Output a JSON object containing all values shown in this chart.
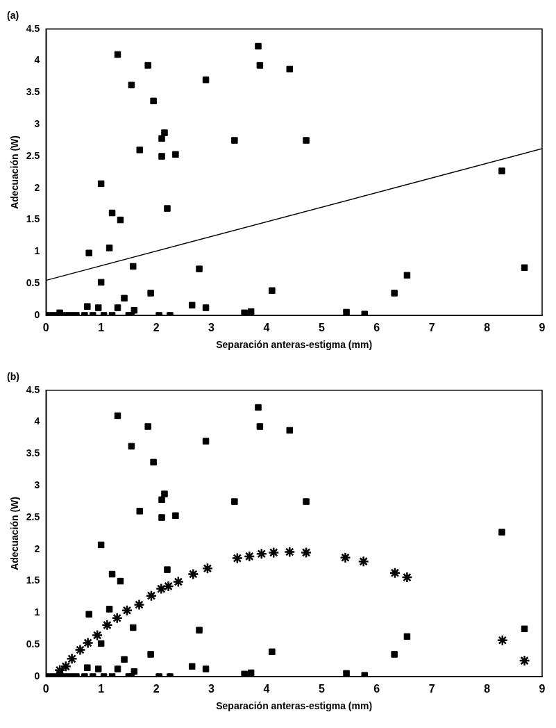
{
  "chart_data": [
    {
      "type": "scatter",
      "title": "(a)",
      "xlabel": "Separación anteras-estigma (mm)",
      "ylabel": "Adecuación (W)",
      "xlim": [
        0,
        9
      ],
      "ylim": [
        0,
        4.5
      ],
      "xticks": [
        0,
        1,
        2,
        3,
        4,
        5,
        6,
        7,
        8,
        9
      ],
      "yticks": [
        0,
        0.5,
        1,
        1.5,
        2,
        2.5,
        3,
        3.5,
        4,
        4.5
      ],
      "grid": false,
      "legend": false,
      "series": [
        {
          "marker": "square",
          "color": "#000000",
          "x": [
            1.3,
            1.55,
            1.85,
            1.95,
            2.15,
            2.1,
            2.1,
            2.35,
            1.7,
            2.9,
            3.85,
            3.88,
            4.42,
            3.42,
            4.72,
            1.0,
            1.2,
            1.35,
            2.2,
            0.78,
            1.15,
            1.58,
            1.0,
            2.78,
            1.9,
            1.42,
            4.1,
            2.65,
            2.9,
            0.75,
            0.95,
            1.3,
            1.6,
            3.6,
            3.72,
            5.45,
            5.78,
            6.32,
            6.55,
            8.27,
            8.68,
            2.05,
            2.25,
            0.25,
            0.05,
            0.15,
            0.35,
            0.45,
            0.55,
            0.7,
            0.85,
            1.05,
            1.2,
            1.5,
            1.55
          ],
          "values": [
            4.1,
            3.62,
            3.93,
            3.37,
            2.87,
            2.78,
            2.5,
            2.53,
            2.6,
            3.7,
            4.23,
            3.93,
            3.87,
            2.75,
            2.75,
            2.07,
            1.61,
            1.5,
            1.68,
            0.98,
            1.06,
            0.77,
            0.52,
            0.73,
            0.35,
            0.27,
            0.39,
            0.16,
            0.12,
            0.14,
            0.12,
            0.12,
            0.08,
            0.04,
            0.06,
            0.05,
            0.02,
            0.35,
            0.63,
            2.27,
            0.75,
            0,
            0,
            0.04,
            0,
            0,
            0,
            0,
            0,
            0,
            0,
            0,
            0,
            0,
            0
          ]
        },
        {
          "type": "line",
          "marker": "none",
          "color": "#000000",
          "x": [
            0,
            9
          ],
          "values": [
            0.55,
            2.62
          ]
        }
      ]
    },
    {
      "type": "scatter",
      "title": "(b)",
      "xlabel": "Separación anteras-estigma (mm)",
      "ylabel": "Adecuación (W)",
      "xlim": [
        0,
        9
      ],
      "ylim": [
        0,
        4.5
      ],
      "xticks": [
        0,
        1,
        2,
        3,
        4,
        5,
        6,
        7,
        8,
        9
      ],
      "yticks": [
        0,
        0.5,
        1,
        1.5,
        2,
        2.5,
        3,
        3.5,
        4,
        4.5
      ],
      "grid": false,
      "legend": false,
      "series": [
        {
          "type": "scatter",
          "marker": "square",
          "color": "#000000",
          "x": [
            1.3,
            1.55,
            1.85,
            1.95,
            2.15,
            2.1,
            2.1,
            2.35,
            1.7,
            2.9,
            3.85,
            3.88,
            4.42,
            3.42,
            4.72,
            1.0,
            1.2,
            1.35,
            2.2,
            0.78,
            1.15,
            1.58,
            1.0,
            2.78,
            1.9,
            1.42,
            4.1,
            2.65,
            2.9,
            0.75,
            0.95,
            1.3,
            1.6,
            3.6,
            3.72,
            5.45,
            5.78,
            6.32,
            6.55,
            8.27,
            8.68,
            2.05,
            2.25,
            0.25,
            0.05,
            0.15,
            0.35,
            0.45,
            0.55,
            0.7,
            0.85,
            1.05,
            1.2,
            1.5,
            1.55
          ],
          "values": [
            4.1,
            3.62,
            3.93,
            3.37,
            2.87,
            2.78,
            2.5,
            2.53,
            2.6,
            3.7,
            4.23,
            3.93,
            3.87,
            2.75,
            2.75,
            2.07,
            1.61,
            1.5,
            1.68,
            0.98,
            1.06,
            0.77,
            0.52,
            0.73,
            0.35,
            0.27,
            0.39,
            0.16,
            0.12,
            0.14,
            0.12,
            0.12,
            0.08,
            0.04,
            0.06,
            0.05,
            0.02,
            0.35,
            0.63,
            2.27,
            0.75,
            0,
            0,
            0.04,
            0,
            0,
            0,
            0,
            0,
            0,
            0,
            0,
            0,
            0,
            0
          ]
        },
        {
          "marker": "cross",
          "color": "#000000",
          "x": [
            0.25,
            0.36,
            0.47,
            0.62,
            0.76,
            0.93,
            1.11,
            1.29,
            1.47,
            1.69,
            1.91,
            2.09,
            2.22,
            2.4,
            2.67,
            2.93,
            3.47,
            3.69,
            3.91,
            4.13,
            4.42,
            4.72,
            5.43,
            5.76,
            6.33,
            6.55,
            8.28,
            8.68
          ],
          "values": [
            0.1,
            0.16,
            0.28,
            0.42,
            0.53,
            0.65,
            0.81,
            0.92,
            1.04,
            1.13,
            1.27,
            1.38,
            1.42,
            1.49,
            1.61,
            1.7,
            1.86,
            1.89,
            1.93,
            1.95,
            1.96,
            1.95,
            1.87,
            1.81,
            1.63,
            1.56,
            0.57,
            0.25
          ]
        }
      ]
    }
  ]
}
